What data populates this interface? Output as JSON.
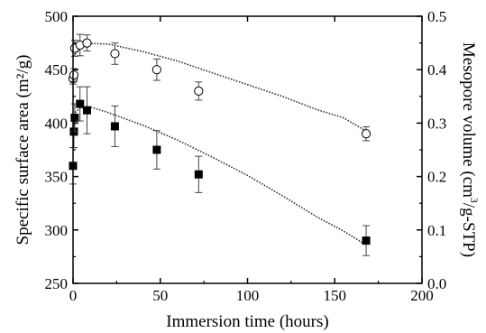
{
  "chart_data": {
    "type": "scatter",
    "xlabel": "Immersion time (hours)",
    "ylabel_left": "Specific surface area (m²/g)",
    "ylabel_right_parts": [
      "Mesopore volume (cm",
      "3",
      "/g-STP)"
    ],
    "xlim": [
      0,
      200
    ],
    "ylim_left": [
      250,
      500
    ],
    "ylim_right": [
      0.0,
      0.5
    ],
    "x_ticks": [
      "0",
      "50",
      "100",
      "150",
      "200"
    ],
    "y_left_ticks": [
      "250",
      "300",
      "350",
      "400",
      "450",
      "500"
    ],
    "y_right_ticks": [
      "0.0",
      "0.1",
      "0.2",
      "0.3",
      "0.4",
      "0.5"
    ],
    "grid": false,
    "legend": "none",
    "series": [
      {
        "marker": "filled-square",
        "axis": "left",
        "points": [
          {
            "x": 0,
            "y": 360,
            "err": 17
          },
          {
            "x": 0.5,
            "y": 392,
            "err": 15
          },
          {
            "x": 1,
            "y": 405,
            "err": 13
          },
          {
            "x": 4,
            "y": 418,
            "err": 16
          },
          {
            "x": 8,
            "y": 412,
            "err": 22
          },
          {
            "x": 24,
            "y": 397,
            "err": 19
          },
          {
            "x": 48,
            "y": 375,
            "err": 18
          },
          {
            "x": 72,
            "y": 352,
            "err": 17
          },
          {
            "x": 168,
            "y": 290,
            "err": 14
          }
        ],
        "trend": [
          {
            "x": 0,
            "y": 408
          },
          {
            "x": 4,
            "y": 414
          },
          {
            "x": 10,
            "y": 415
          },
          {
            "x": 20,
            "y": 410
          },
          {
            "x": 40,
            "y": 398
          },
          {
            "x": 60,
            "y": 384
          },
          {
            "x": 80,
            "y": 368
          },
          {
            "x": 100,
            "y": 351
          },
          {
            "x": 120,
            "y": 332
          },
          {
            "x": 140,
            "y": 312
          },
          {
            "x": 155,
            "y": 299
          },
          {
            "x": 168,
            "y": 286
          }
        ]
      },
      {
        "marker": "open-circle",
        "axis": "right",
        "points": [
          {
            "x": 0,
            "y": 0.383,
            "err": 0.01
          },
          {
            "x": 0.5,
            "y": 0.39,
            "err": 0.012
          },
          {
            "x": 1,
            "y": 0.44,
            "err": 0.015
          },
          {
            "x": 4,
            "y": 0.446,
            "err": 0.02
          },
          {
            "x": 8,
            "y": 0.45,
            "err": 0.015
          },
          {
            "x": 24,
            "y": 0.43,
            "err": 0.02
          },
          {
            "x": 48,
            "y": 0.4,
            "err": 0.02
          },
          {
            "x": 72,
            "y": 0.36,
            "err": 0.017
          },
          {
            "x": 168,
            "y": 0.28,
            "err": 0.013
          }
        ],
        "trend": [
          {
            "x": 0,
            "y": 0.425
          },
          {
            "x": 5,
            "y": 0.442
          },
          {
            "x": 10,
            "y": 0.449
          },
          {
            "x": 20,
            "y": 0.448
          },
          {
            "x": 40,
            "y": 0.434
          },
          {
            "x": 60,
            "y": 0.416
          },
          {
            "x": 80,
            "y": 0.394
          },
          {
            "x": 100,
            "y": 0.372
          },
          {
            "x": 120,
            "y": 0.35
          },
          {
            "x": 140,
            "y": 0.325
          },
          {
            "x": 155,
            "y": 0.31
          },
          {
            "x": 168,
            "y": 0.285
          }
        ]
      }
    ]
  }
}
